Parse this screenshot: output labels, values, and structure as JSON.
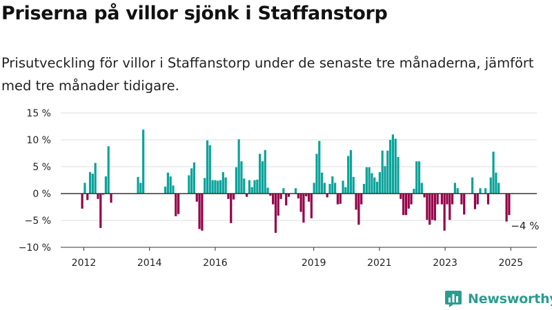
{
  "title": "Priserna på villor sjönk i Staffanstorp",
  "subtitle": "Prisutveckling för villor i Staffanstorp under de senaste tre månaderna, jämfört med tre månader tidigare.",
  "brand": {
    "name": "Newsworthy",
    "logo_icon": "bar-chart-logo-icon"
  },
  "colors": {
    "positive": "#0aa39a",
    "negative": "#960048",
    "grid": "#dddddd",
    "zero_line": "#333333",
    "brand": "#2a9d8f"
  },
  "chart_data": {
    "type": "bar",
    "title": "",
    "xlabel": "",
    "ylabel": "",
    "ylim": [
      -10,
      15
    ],
    "yticks": [
      -10,
      -5,
      0,
      5,
      10,
      15
    ],
    "ytick_labels": [
      "−10 %",
      "−5 %",
      "0 %",
      "5 %",
      "10 %",
      "15 %"
    ],
    "xticks": [
      2012,
      2014,
      2016,
      2019,
      2021,
      2023,
      2025
    ],
    "xtick_labels": [
      "2012",
      "2014",
      "2016",
      "2019",
      "2021",
      "2023",
      "2025"
    ],
    "annotation": {
      "label": "−4 %",
      "value": -4
    },
    "grid": true,
    "legend": "none",
    "bars": [
      {
        "x": 2011.95,
        "v": -2.8
      },
      {
        "x": 2012.03,
        "v": 2.0
      },
      {
        "x": 2012.11,
        "v": -1.2
      },
      {
        "x": 2012.19,
        "v": 4.0
      },
      {
        "x": 2012.27,
        "v": 3.7
      },
      {
        "x": 2012.35,
        "v": 5.7
      },
      {
        "x": 2012.43,
        "v": -1.0
      },
      {
        "x": 2012.51,
        "v": -6.4
      },
      {
        "x": 2012.59,
        "v": -0.2
      },
      {
        "x": 2012.67,
        "v": 3.2
      },
      {
        "x": 2012.75,
        "v": 8.8
      },
      {
        "x": 2012.83,
        "v": -1.7
      },
      {
        "x": 2013.65,
        "v": 3.1
      },
      {
        "x": 2013.73,
        "v": 2.0
      },
      {
        "x": 2013.81,
        "v": 11.9
      },
      {
        "x": 2014.48,
        "v": 1.3
      },
      {
        "x": 2014.56,
        "v": 3.9
      },
      {
        "x": 2014.64,
        "v": 3.2
      },
      {
        "x": 2014.72,
        "v": 1.5
      },
      {
        "x": 2014.8,
        "v": -4.2
      },
      {
        "x": 2014.88,
        "v": -3.8
      },
      {
        "x": 2015.2,
        "v": 3.4
      },
      {
        "x": 2015.28,
        "v": 4.7
      },
      {
        "x": 2015.36,
        "v": 5.8
      },
      {
        "x": 2015.44,
        "v": -1.5
      },
      {
        "x": 2015.52,
        "v": -6.6
      },
      {
        "x": 2015.6,
        "v": -6.9
      },
      {
        "x": 2015.68,
        "v": 2.9
      },
      {
        "x": 2015.76,
        "v": 9.9
      },
      {
        "x": 2015.84,
        "v": 9.0
      },
      {
        "x": 2015.92,
        "v": 2.5
      },
      {
        "x": 2016.0,
        "v": 2.5
      },
      {
        "x": 2016.08,
        "v": 2.4
      },
      {
        "x": 2016.16,
        "v": 2.5
      },
      {
        "x": 2016.24,
        "v": 4.0
      },
      {
        "x": 2016.32,
        "v": 3.0
      },
      {
        "x": 2016.4,
        "v": -1.0
      },
      {
        "x": 2016.48,
        "v": -5.5
      },
      {
        "x": 2016.56,
        "v": -1.1
      },
      {
        "x": 2016.64,
        "v": 4.9
      },
      {
        "x": 2016.72,
        "v": 10.1
      },
      {
        "x": 2016.8,
        "v": 6.0
      },
      {
        "x": 2016.88,
        "v": 2.8
      },
      {
        "x": 2016.96,
        "v": -0.6
      },
      {
        "x": 2017.04,
        "v": 2.5
      },
      {
        "x": 2017.12,
        "v": 1.2
      },
      {
        "x": 2017.2,
        "v": 2.5
      },
      {
        "x": 2017.28,
        "v": 2.6
      },
      {
        "x": 2017.36,
        "v": 7.4
      },
      {
        "x": 2017.44,
        "v": 6.0
      },
      {
        "x": 2017.52,
        "v": 8.1
      },
      {
        "x": 2017.6,
        "v": 1.1
      },
      {
        "x": 2017.68,
        "v": -0.4
      },
      {
        "x": 2017.76,
        "v": -2.0
      },
      {
        "x": 2017.84,
        "v": -7.3
      },
      {
        "x": 2017.92,
        "v": -4.1
      },
      {
        "x": 2018.0,
        "v": -1.0
      },
      {
        "x": 2018.08,
        "v": 1.0
      },
      {
        "x": 2018.16,
        "v": -2.2
      },
      {
        "x": 2018.24,
        "v": -0.6
      },
      {
        "x": 2018.45,
        "v": 1.0
      },
      {
        "x": 2018.53,
        "v": -0.9
      },
      {
        "x": 2018.61,
        "v": -3.4
      },
      {
        "x": 2018.69,
        "v": -5.4
      },
      {
        "x": 2018.77,
        "v": -0.5
      },
      {
        "x": 2018.85,
        "v": -1.5
      },
      {
        "x": 2018.93,
        "v": -4.6
      },
      {
        "x": 2019.01,
        "v": 2.0
      },
      {
        "x": 2019.09,
        "v": 7.4
      },
      {
        "x": 2019.17,
        "v": 9.8
      },
      {
        "x": 2019.25,
        "v": 3.9
      },
      {
        "x": 2019.33,
        "v": 2.0
      },
      {
        "x": 2019.41,
        "v": -0.7
      },
      {
        "x": 2019.49,
        "v": 1.8
      },
      {
        "x": 2019.57,
        "v": 3.2
      },
      {
        "x": 2019.65,
        "v": 2.0
      },
      {
        "x": 2019.73,
        "v": -2.0
      },
      {
        "x": 2019.81,
        "v": -1.9
      },
      {
        "x": 2019.89,
        "v": 2.4
      },
      {
        "x": 2019.97,
        "v": 1.2
      },
      {
        "x": 2020.05,
        "v": 7.0
      },
      {
        "x": 2020.13,
        "v": 8.1
      },
      {
        "x": 2020.21,
        "v": 3.1
      },
      {
        "x": 2020.29,
        "v": -3.0
      },
      {
        "x": 2020.37,
        "v": -5.8
      },
      {
        "x": 2020.45,
        "v": -2.0
      },
      {
        "x": 2020.53,
        "v": 1.8
      },
      {
        "x": 2020.61,
        "v": 4.9
      },
      {
        "x": 2020.69,
        "v": 4.9
      },
      {
        "x": 2020.77,
        "v": 3.8
      },
      {
        "x": 2020.85,
        "v": 3.0
      },
      {
        "x": 2020.93,
        "v": 2.2
      },
      {
        "x": 2021.01,
        "v": 4.0
      },
      {
        "x": 2021.09,
        "v": 8.0
      },
      {
        "x": 2021.17,
        "v": 5.1
      },
      {
        "x": 2021.25,
        "v": 8.0
      },
      {
        "x": 2021.33,
        "v": 10.0
      },
      {
        "x": 2021.41,
        "v": 11.0
      },
      {
        "x": 2021.49,
        "v": 10.2
      },
      {
        "x": 2021.57,
        "v": 6.8
      },
      {
        "x": 2021.65,
        "v": -1.0
      },
      {
        "x": 2021.73,
        "v": -4.0
      },
      {
        "x": 2021.81,
        "v": -4.0
      },
      {
        "x": 2021.89,
        "v": -2.8
      },
      {
        "x": 2021.97,
        "v": -2.0
      },
      {
        "x": 2022.05,
        "v": 0.9
      },
      {
        "x": 2022.13,
        "v": 6.0
      },
      {
        "x": 2022.21,
        "v": 6.0
      },
      {
        "x": 2022.29,
        "v": 2.0
      },
      {
        "x": 2022.37,
        "v": -0.7
      },
      {
        "x": 2022.45,
        "v": -4.9
      },
      {
        "x": 2022.53,
        "v": -5.8
      },
      {
        "x": 2022.61,
        "v": -4.9
      },
      {
        "x": 2022.69,
        "v": -5.0
      },
      {
        "x": 2022.77,
        "v": -2.0
      },
      {
        "x": 2022.9,
        "v": -2.0
      },
      {
        "x": 2022.98,
        "v": -6.9
      },
      {
        "x": 2023.06,
        "v": -2.0
      },
      {
        "x": 2023.14,
        "v": -4.9
      },
      {
        "x": 2023.22,
        "v": -2.0
      },
      {
        "x": 2023.3,
        "v": 2.0
      },
      {
        "x": 2023.38,
        "v": 1.0
      },
      {
        "x": 2023.5,
        "v": -2.0
      },
      {
        "x": 2023.58,
        "v": -3.9
      },
      {
        "x": 2023.83,
        "v": 3.0
      },
      {
        "x": 2023.91,
        "v": -2.9
      },
      {
        "x": 2023.99,
        "v": -2.0
      },
      {
        "x": 2024.07,
        "v": 1.0
      },
      {
        "x": 2024.23,
        "v": 1.0
      },
      {
        "x": 2024.31,
        "v": -2.0
      },
      {
        "x": 2024.39,
        "v": 3.0
      },
      {
        "x": 2024.47,
        "v": 7.8
      },
      {
        "x": 2024.55,
        "v": 3.9
      },
      {
        "x": 2024.63,
        "v": 2.0
      },
      {
        "x": 2024.87,
        "v": -5.2
      },
      {
        "x": 2024.95,
        "v": -4.0
      }
    ]
  }
}
